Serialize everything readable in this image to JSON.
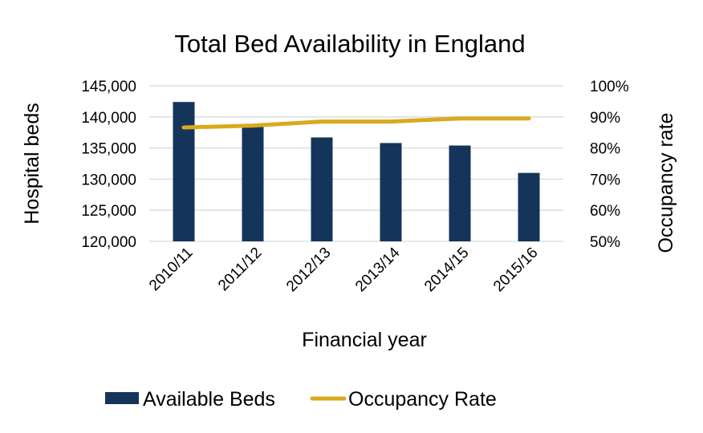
{
  "chart_data": {
    "type": "bar",
    "title": "Total Bed Availability in England",
    "xlabel": "Financial year",
    "ylabel": "Hospital beds",
    "y2label": "Occupancy rate",
    "categories": [
      "2010/11",
      "2011/12",
      "2012/13",
      "2013/14",
      "2014/15",
      "2015/16"
    ],
    "series": [
      {
        "name": "Available Beds",
        "type": "bar",
        "axis": "left",
        "color": "#15345a",
        "values": [
          142400,
          138400,
          136700,
          135800,
          135400,
          131000
        ]
      },
      {
        "name": "Occupancy Rate",
        "type": "line",
        "axis": "right",
        "color": "#d9aa1c",
        "values": [
          0.866,
          0.872,
          0.885,
          0.885,
          0.895,
          0.895
        ]
      }
    ],
    "ylim": [
      120000,
      145000
    ],
    "yticks": [
      "120,000",
      "125,000",
      "130,000",
      "135,000",
      "140,000",
      "145,000"
    ],
    "y2lim": [
      0.5,
      1.0
    ],
    "y2ticks": [
      "50%",
      "60%",
      "70%",
      "80%",
      "90%",
      "100%"
    ],
    "grid": true,
    "legend": "bottom"
  }
}
